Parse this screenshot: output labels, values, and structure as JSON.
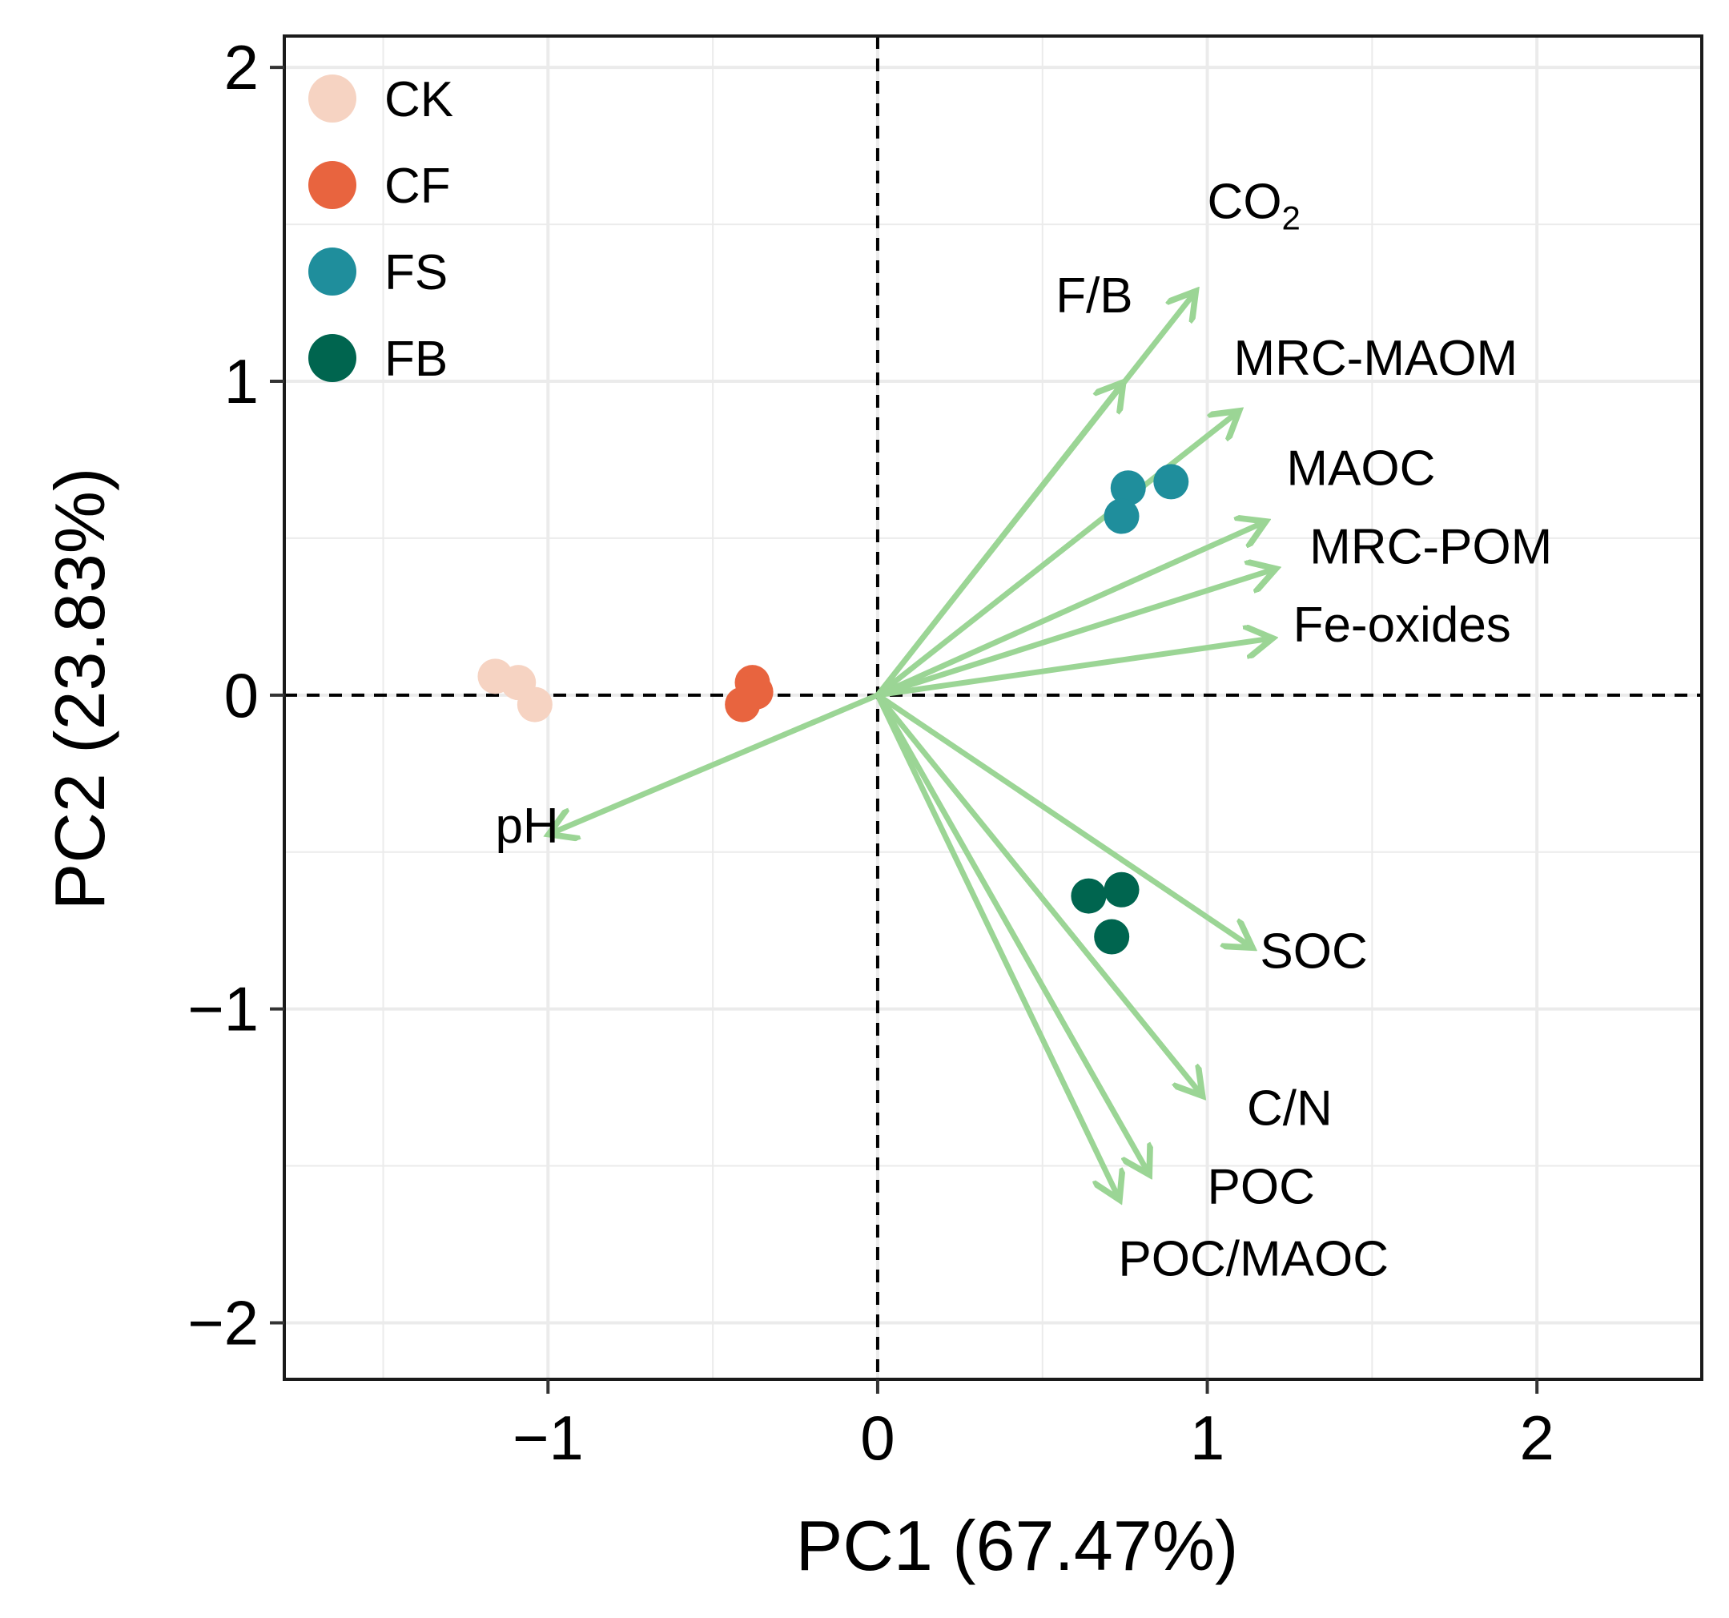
{
  "chart_data": {
    "type": "scatter",
    "subtype": "pca-biplot",
    "title": "",
    "xlabel": "PC1 (67.47%)",
    "ylabel": "PC2 (23.83%)",
    "xlim": [
      -1.8,
      2.5
    ],
    "ylim": [
      -2.18,
      2.1
    ],
    "xticks": [
      {
        "value": -1,
        "label": "−1"
      },
      {
        "value": 0,
        "label": "0"
      },
      {
        "value": 1,
        "label": "1"
      },
      {
        "value": 2,
        "label": "2"
      }
    ],
    "yticks": [
      {
        "value": -2,
        "label": "−2"
      },
      {
        "value": -1,
        "label": "−1"
      },
      {
        "value": 0,
        "label": "0"
      },
      {
        "value": 1,
        "label": "1"
      },
      {
        "value": 2,
        "label": "2"
      }
    ],
    "grid": true,
    "reference_lines": {
      "x": 0,
      "y": 0,
      "style": "dashed"
    },
    "legend_position": "top-left",
    "series": [
      {
        "name": "CK",
        "color": "#F6D3C2",
        "points": [
          [
            -1.16,
            0.06
          ],
          [
            -1.09,
            0.04
          ],
          [
            -1.04,
            -0.03
          ]
        ]
      },
      {
        "name": "CF",
        "color": "#E8643F",
        "points": [
          [
            -0.38,
            0.04
          ],
          [
            -0.41,
            -0.03
          ],
          [
            -0.37,
            0.01
          ]
        ]
      },
      {
        "name": "FS",
        "color": "#1F8E9C",
        "points": [
          [
            0.76,
            0.66
          ],
          [
            0.89,
            0.68
          ],
          [
            0.74,
            0.57
          ]
        ]
      },
      {
        "name": "FB",
        "color": "#00654F",
        "points": [
          [
            0.64,
            -0.64
          ],
          [
            0.74,
            -0.62
          ],
          [
            0.71,
            -0.77
          ]
        ]
      }
    ],
    "loadings": {
      "color": "#9BD595",
      "vectors": [
        {
          "name": "CO2",
          "label": "CO",
          "subscript": "2",
          "x": 0.96,
          "y": 1.28,
          "label_x": 1.0,
          "label_y": 1.52
        },
        {
          "name": "F/B",
          "label": "F/B",
          "x": 0.74,
          "y": 0.99,
          "label_x": 0.54,
          "label_y": 1.22
        },
        {
          "name": "MRC-MAOM",
          "label": "MRC-MAOM",
          "x": 1.09,
          "y": 0.9,
          "label_x": 1.08,
          "label_y": 1.02
        },
        {
          "name": "MAOC",
          "label": "MAOC",
          "x": 1.17,
          "y": 0.55,
          "label_x": 1.24,
          "label_y": 0.67
        },
        {
          "name": "MRC-POM",
          "label": "MRC-POM",
          "x": 1.2,
          "y": 0.4,
          "label_x": 1.31,
          "label_y": 0.42
        },
        {
          "name": "Fe-oxides",
          "label": "Fe-oxides",
          "x": 1.19,
          "y": 0.18,
          "label_x": 1.26,
          "label_y": 0.17
        },
        {
          "name": "pH",
          "label": "pH",
          "x": -0.99,
          "y": -0.44,
          "label_x": -1.16,
          "label_y": -0.47
        },
        {
          "name": "SOC",
          "label": "SOC",
          "x": 1.13,
          "y": -0.8,
          "label_x": 1.16,
          "label_y": -0.87
        },
        {
          "name": "C/N",
          "label": "C/N",
          "x": 0.98,
          "y": -1.27,
          "label_x": 1.12,
          "label_y": -1.37
        },
        {
          "name": "POC",
          "label": "POC",
          "x": 0.82,
          "y": -1.52,
          "label_x": 1.0,
          "label_y": -1.62
        },
        {
          "name": "POC/MAOC",
          "label": "POC/MAOC",
          "x": 0.73,
          "y": -1.6,
          "label_x": 0.73,
          "label_y": -1.85
        }
      ]
    }
  }
}
